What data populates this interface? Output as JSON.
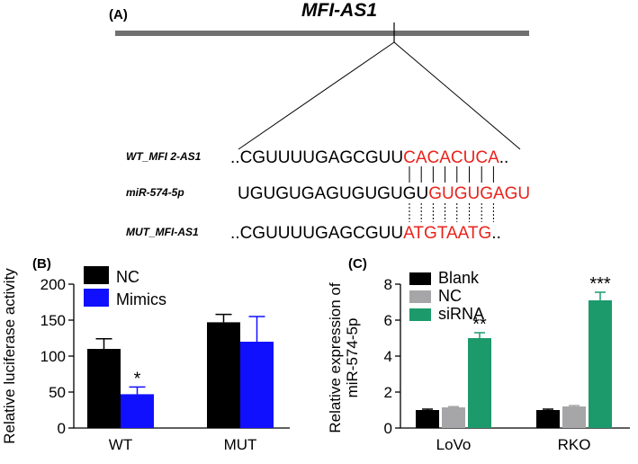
{
  "colors": {
    "black": "#000000",
    "blue": "#1010ff",
    "gray": "#a6a6a8",
    "green": "#1c9a6b",
    "red": "#e8231c",
    "gene_bar": "#707070"
  },
  "panel_a": {
    "label": "(A)",
    "gene_title": "MFI-AS1",
    "rows": [
      {
        "name": "WT_MFI 2-AS1",
        "prefix": "..",
        "black_seq": "CGUUUUGAGCGUU",
        "red_seq": "CACACUCA",
        "suffix": ".."
      },
      {
        "name": "miR-574-5p",
        "prefix": "",
        "black_seq": "UGUGUGAGUGUGUGU",
        "red_seq": "GUGUGAGU",
        "suffix": ""
      },
      {
        "name": "MUT_MFI-AS1",
        "prefix": "..",
        "black_seq": "CGUUUUGAGCGUU",
        "red_seq": "ATGTAATG",
        "suffix": ".."
      }
    ]
  },
  "chart_data": [
    {
      "panel": "(B)",
      "type": "bar",
      "ylabel": "Relative luciferase activity",
      "xlabel": "",
      "ylim": [
        0,
        200
      ],
      "yticks": [
        0,
        50,
        100,
        150,
        200
      ],
      "categories": [
        "WT",
        "MUT"
      ],
      "legend_position": "top-left",
      "series": [
        {
          "name": "NC",
          "color": "#000000",
          "values": [
            110,
            147
          ],
          "errors": [
            14,
            11
          ]
        },
        {
          "name": "Mimics",
          "color": "#1010ff",
          "values": [
            47,
            120
          ],
          "errors": [
            10,
            35
          ]
        }
      ],
      "annotations": [
        {
          "category": "WT",
          "series": "Mimics",
          "text": "*"
        }
      ]
    },
    {
      "panel": "(C)",
      "type": "bar",
      "ylabel": "Relative expression of\nmiR-574-5p",
      "xlabel": "",
      "ylim": [
        0,
        8
      ],
      "yticks": [
        0,
        2,
        4,
        6,
        8
      ],
      "categories": [
        "LoVo",
        "RKO"
      ],
      "legend_position": "top-left",
      "series": [
        {
          "name": "Blank",
          "color": "#000000",
          "values": [
            1.0,
            1.0
          ],
          "errors": [
            0.05,
            0.05
          ]
        },
        {
          "name": "NC",
          "color": "#a6a6a8",
          "values": [
            1.15,
            1.2
          ],
          "errors": [
            0.04,
            0.05
          ]
        },
        {
          "name": "siRNA",
          "color": "#1c9a6b",
          "values": [
            5.0,
            7.1
          ],
          "errors": [
            0.3,
            0.45
          ]
        }
      ],
      "annotations": [
        {
          "category": "LoVo",
          "series": "siRNA",
          "text": "**"
        },
        {
          "category": "RKO",
          "series": "siRNA",
          "text": "***"
        }
      ]
    }
  ]
}
